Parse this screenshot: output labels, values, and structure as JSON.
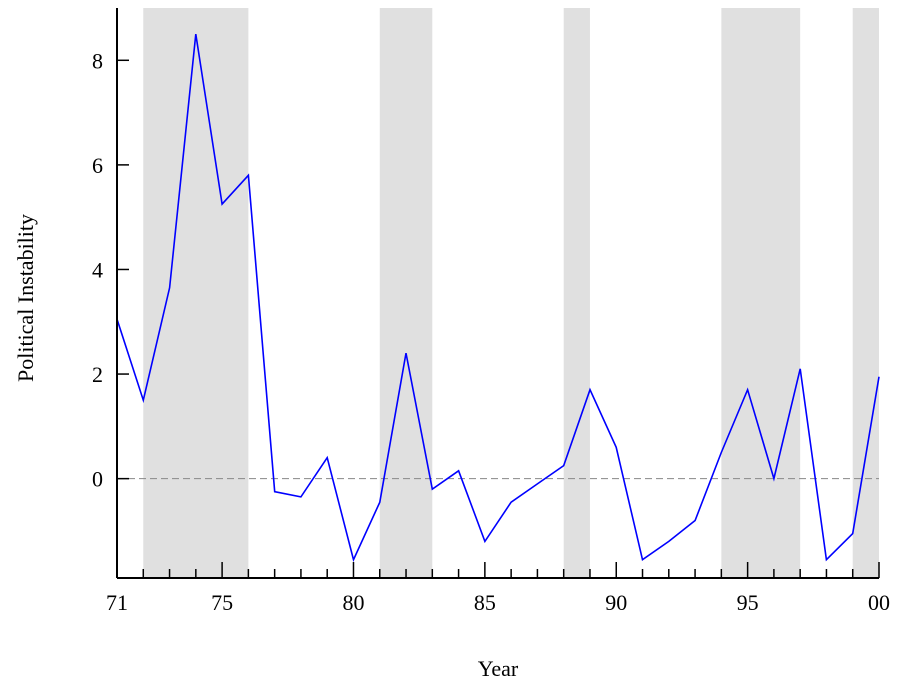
{
  "chart_data": {
    "type": "line",
    "title": "",
    "xlabel": "Year",
    "ylabel": "Political Instability",
    "xlim": [
      1971,
      2000
    ],
    "ylim": [
      -1.9,
      9
    ],
    "x_ticks": [
      {
        "value": 1971,
        "label": "71"
      },
      {
        "value": 1975,
        "label": "75"
      },
      {
        "value": 1980,
        "label": "80"
      },
      {
        "value": 1985,
        "label": "85"
      },
      {
        "value": 1990,
        "label": "90"
      },
      {
        "value": 1995,
        "label": "95"
      },
      {
        "value": 2000,
        "label": "00"
      }
    ],
    "y_ticks": [
      0,
      2,
      4,
      6,
      8
    ],
    "shaded_periods": [
      [
        1972,
        1976
      ],
      [
        1981,
        1983
      ],
      [
        1988,
        1989
      ],
      [
        1994,
        1997
      ],
      [
        1999,
        2000
      ]
    ],
    "reference_line": 0,
    "grid": false,
    "legend": "none",
    "series": [
      {
        "color": "#0000ff",
        "x": [
          1971,
          1972,
          1973,
          1974,
          1975,
          1976,
          1977,
          1978,
          1979,
          1980,
          1981,
          1982,
          1983,
          1984,
          1985,
          1986,
          1987,
          1988,
          1989,
          1990,
          1991,
          1992,
          1993,
          1994,
          1995,
          1996,
          1997,
          1998,
          1999,
          2000
        ],
        "values": [
          3.05,
          1.5,
          3.65,
          8.5,
          5.25,
          5.8,
          -0.25,
          -0.35,
          0.4,
          -1.55,
          -0.45,
          2.4,
          -0.2,
          0.15,
          -1.2,
          -0.45,
          -0.1,
          0.25,
          1.7,
          0.6,
          -1.55,
          -1.2,
          -0.8,
          0.5,
          1.7,
          0.0,
          2.1,
          -1.55,
          -1.05,
          1.95
        ]
      }
    ],
    "colors": {
      "line": "#0000ff",
      "shade": "#e0e0e0",
      "reference": "#888888",
      "axis": "#000000"
    }
  }
}
